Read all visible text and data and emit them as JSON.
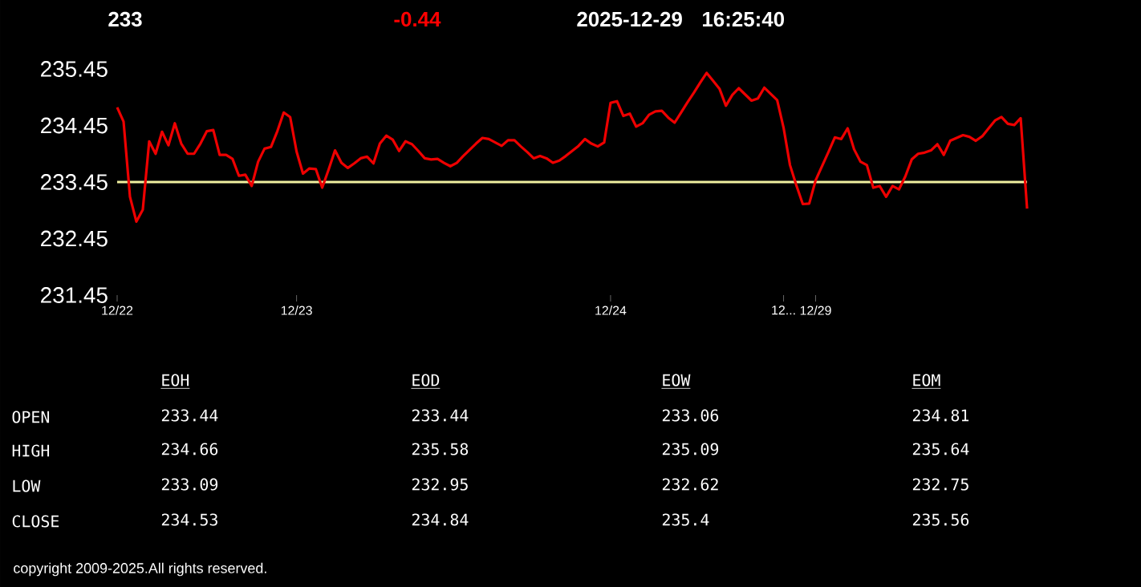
{
  "chart_data": {
    "type": "line",
    "annotations": [
      "233",
      "-0.44",
      "2025-12-29",
      "16:25:40",
      "EOH",
      "EOD",
      "EOW",
      "EOM",
      "OPEN",
      "HIGH",
      "LOW",
      "CLOSE",
      "233.44",
      "233.44",
      "233.06",
      "234.81",
      "234.66",
      "235.58",
      "235.09",
      "235.64",
      "233.09",
      "232.95",
      "232.62",
      "232.75",
      "234.53",
      "234.84",
      "235.4",
      "235.56",
      "copyright 2009-2025.All rights reserved."
    ],
    "categories": [
      "12/22",
      null,
      null,
      null,
      null,
      null,
      null,
      null,
      null,
      null,
      null,
      null,
      null,
      null,
      null,
      null,
      null,
      null,
      null,
      null,
      null,
      null,
      null,
      null,
      null,
      null,
      null,
      null,
      "12/23",
      null,
      null,
      null,
      null,
      null,
      null,
      null,
      null,
      null,
      null,
      null,
      null,
      null,
      null,
      null,
      null,
      null,
      null,
      null,
      null,
      null,
      null,
      null,
      null,
      null,
      null,
      null,
      null,
      null,
      null,
      null,
      null,
      null,
      null,
      null,
      null,
      null,
      null,
      null,
      null,
      null,
      null,
      null,
      null,
      null,
      null,
      null,
      null,
      "12/24",
      null,
      null,
      null,
      null,
      null,
      null,
      null,
      null,
      null,
      null,
      null,
      null,
      null,
      null,
      null,
      null,
      null,
      null,
      null,
      null,
      null,
      null,
      null,
      null,
      null,
      null,
      "12...",
      null,
      null,
      null,
      null,
      "12/29",
      null,
      null,
      null,
      null,
      null,
      null,
      null,
      null,
      null,
      null,
      null,
      null,
      null,
      null,
      null,
      null,
      null,
      null,
      null,
      null,
      null,
      null,
      null,
      null,
      null,
      null,
      null,
      null,
      null,
      null,
      null,
      null,
      null
    ],
    "ylim": [
      231.45,
      235.45
    ],
    "yticks": [
      {
        "value": 231.45,
        "label": "231.45"
      },
      {
        "value": 232.45,
        "label": "232.45"
      },
      {
        "value": 233.45,
        "label": "233.45"
      },
      {
        "value": 234.45,
        "label": "234.45"
      },
      {
        "value": 235.45,
        "label": "235.45"
      }
    ],
    "ref_lines": [
      {
        "axis": "y",
        "value": 233.45,
        "color": "#f0f0a0"
      }
    ],
    "grid": false,
    "marker": "none",
    "line_style": "solid",
    "series": [
      {
        "color": "#ee0000",
        "values": [
          234.77,
          234.52,
          233.19,
          232.75,
          232.96,
          234.17,
          233.95,
          234.34,
          234.1,
          234.49,
          234.13,
          233.95,
          233.95,
          234.13,
          234.35,
          234.37,
          233.93,
          233.93,
          233.86,
          233.56,
          233.58,
          233.38,
          233.81,
          234.04,
          234.07,
          234.35,
          234.68,
          234.6,
          233.99,
          233.6,
          233.69,
          233.68,
          233.35,
          233.67,
          234.01,
          233.79,
          233.7,
          233.78,
          233.87,
          233.9,
          233.78,
          234.13,
          234.27,
          234.2,
          234.0,
          234.17,
          234.12,
          234.0,
          233.87,
          233.85,
          233.86,
          233.79,
          233.73,
          233.79,
          233.91,
          234.02,
          234.13,
          234.23,
          234.21,
          234.15,
          234.09,
          234.19,
          234.19,
          234.08,
          233.98,
          233.87,
          233.91,
          233.87,
          233.79,
          233.83,
          233.91,
          234.0,
          234.09,
          234.21,
          234.13,
          234.08,
          234.15,
          234.85,
          234.88,
          234.62,
          234.66,
          234.43,
          234.49,
          234.64,
          234.7,
          234.71,
          234.59,
          234.5,
          234.68,
          234.86,
          235.03,
          235.21,
          235.38,
          235.24,
          235.1,
          234.8,
          234.99,
          235.11,
          235.0,
          234.89,
          234.93,
          235.12,
          235.01,
          234.9,
          234.41,
          233.75,
          233.39,
          233.06,
          233.07,
          233.48,
          233.73,
          233.98,
          234.24,
          234.21,
          234.4,
          234.03,
          233.81,
          233.75,
          233.35,
          233.38,
          233.19,
          233.38,
          233.32,
          233.55,
          233.85,
          233.95,
          233.97,
          234.01,
          234.12,
          233.93,
          234.18,
          234.23,
          234.28,
          234.25,
          234.18,
          234.26,
          234.4,
          234.54,
          234.6,
          234.48,
          234.46,
          234.58,
          232.98
        ]
      }
    ]
  }
}
